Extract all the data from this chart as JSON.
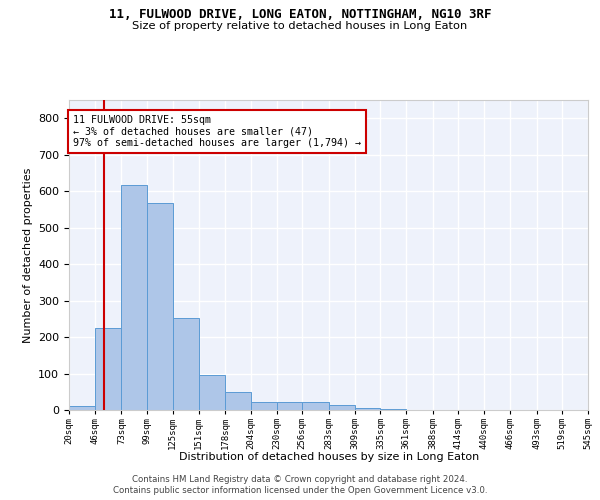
{
  "title": "11, FULWOOD DRIVE, LONG EATON, NOTTINGHAM, NG10 3RF",
  "subtitle": "Size of property relative to detached houses in Long Eaton",
  "xlabel": "Distribution of detached houses by size in Long Eaton",
  "ylabel": "Number of detached properties",
  "bar_color": "#aec6e8",
  "bar_edge_color": "#5b9bd5",
  "background_color": "#eef2fb",
  "grid_color": "#ffffff",
  "property_line_x": 55,
  "property_line_color": "#cc0000",
  "annotation_text": "11 FULWOOD DRIVE: 55sqm\n← 3% of detached houses are smaller (47)\n97% of semi-detached houses are larger (1,794) →",
  "annotation_box_color": "#cc0000",
  "bin_edges": [
    20,
    46,
    73,
    99,
    125,
    151,
    178,
    204,
    230,
    256,
    283,
    309,
    335,
    361,
    388,
    414,
    440,
    466,
    493,
    519,
    545
  ],
  "bar_heights": [
    10,
    225,
    617,
    568,
    252,
    96,
    49,
    21,
    22,
    21,
    14,
    5,
    4,
    0,
    0,
    0,
    0,
    0,
    0,
    0
  ],
  "ylim": [
    0,
    850
  ],
  "xlim": [
    20,
    545
  ],
  "yticks": [
    0,
    100,
    200,
    300,
    400,
    500,
    600,
    700,
    800
  ],
  "footnote1": "Contains HM Land Registry data © Crown copyright and database right 2024.",
  "footnote2": "Contains public sector information licensed under the Open Government Licence v3.0."
}
